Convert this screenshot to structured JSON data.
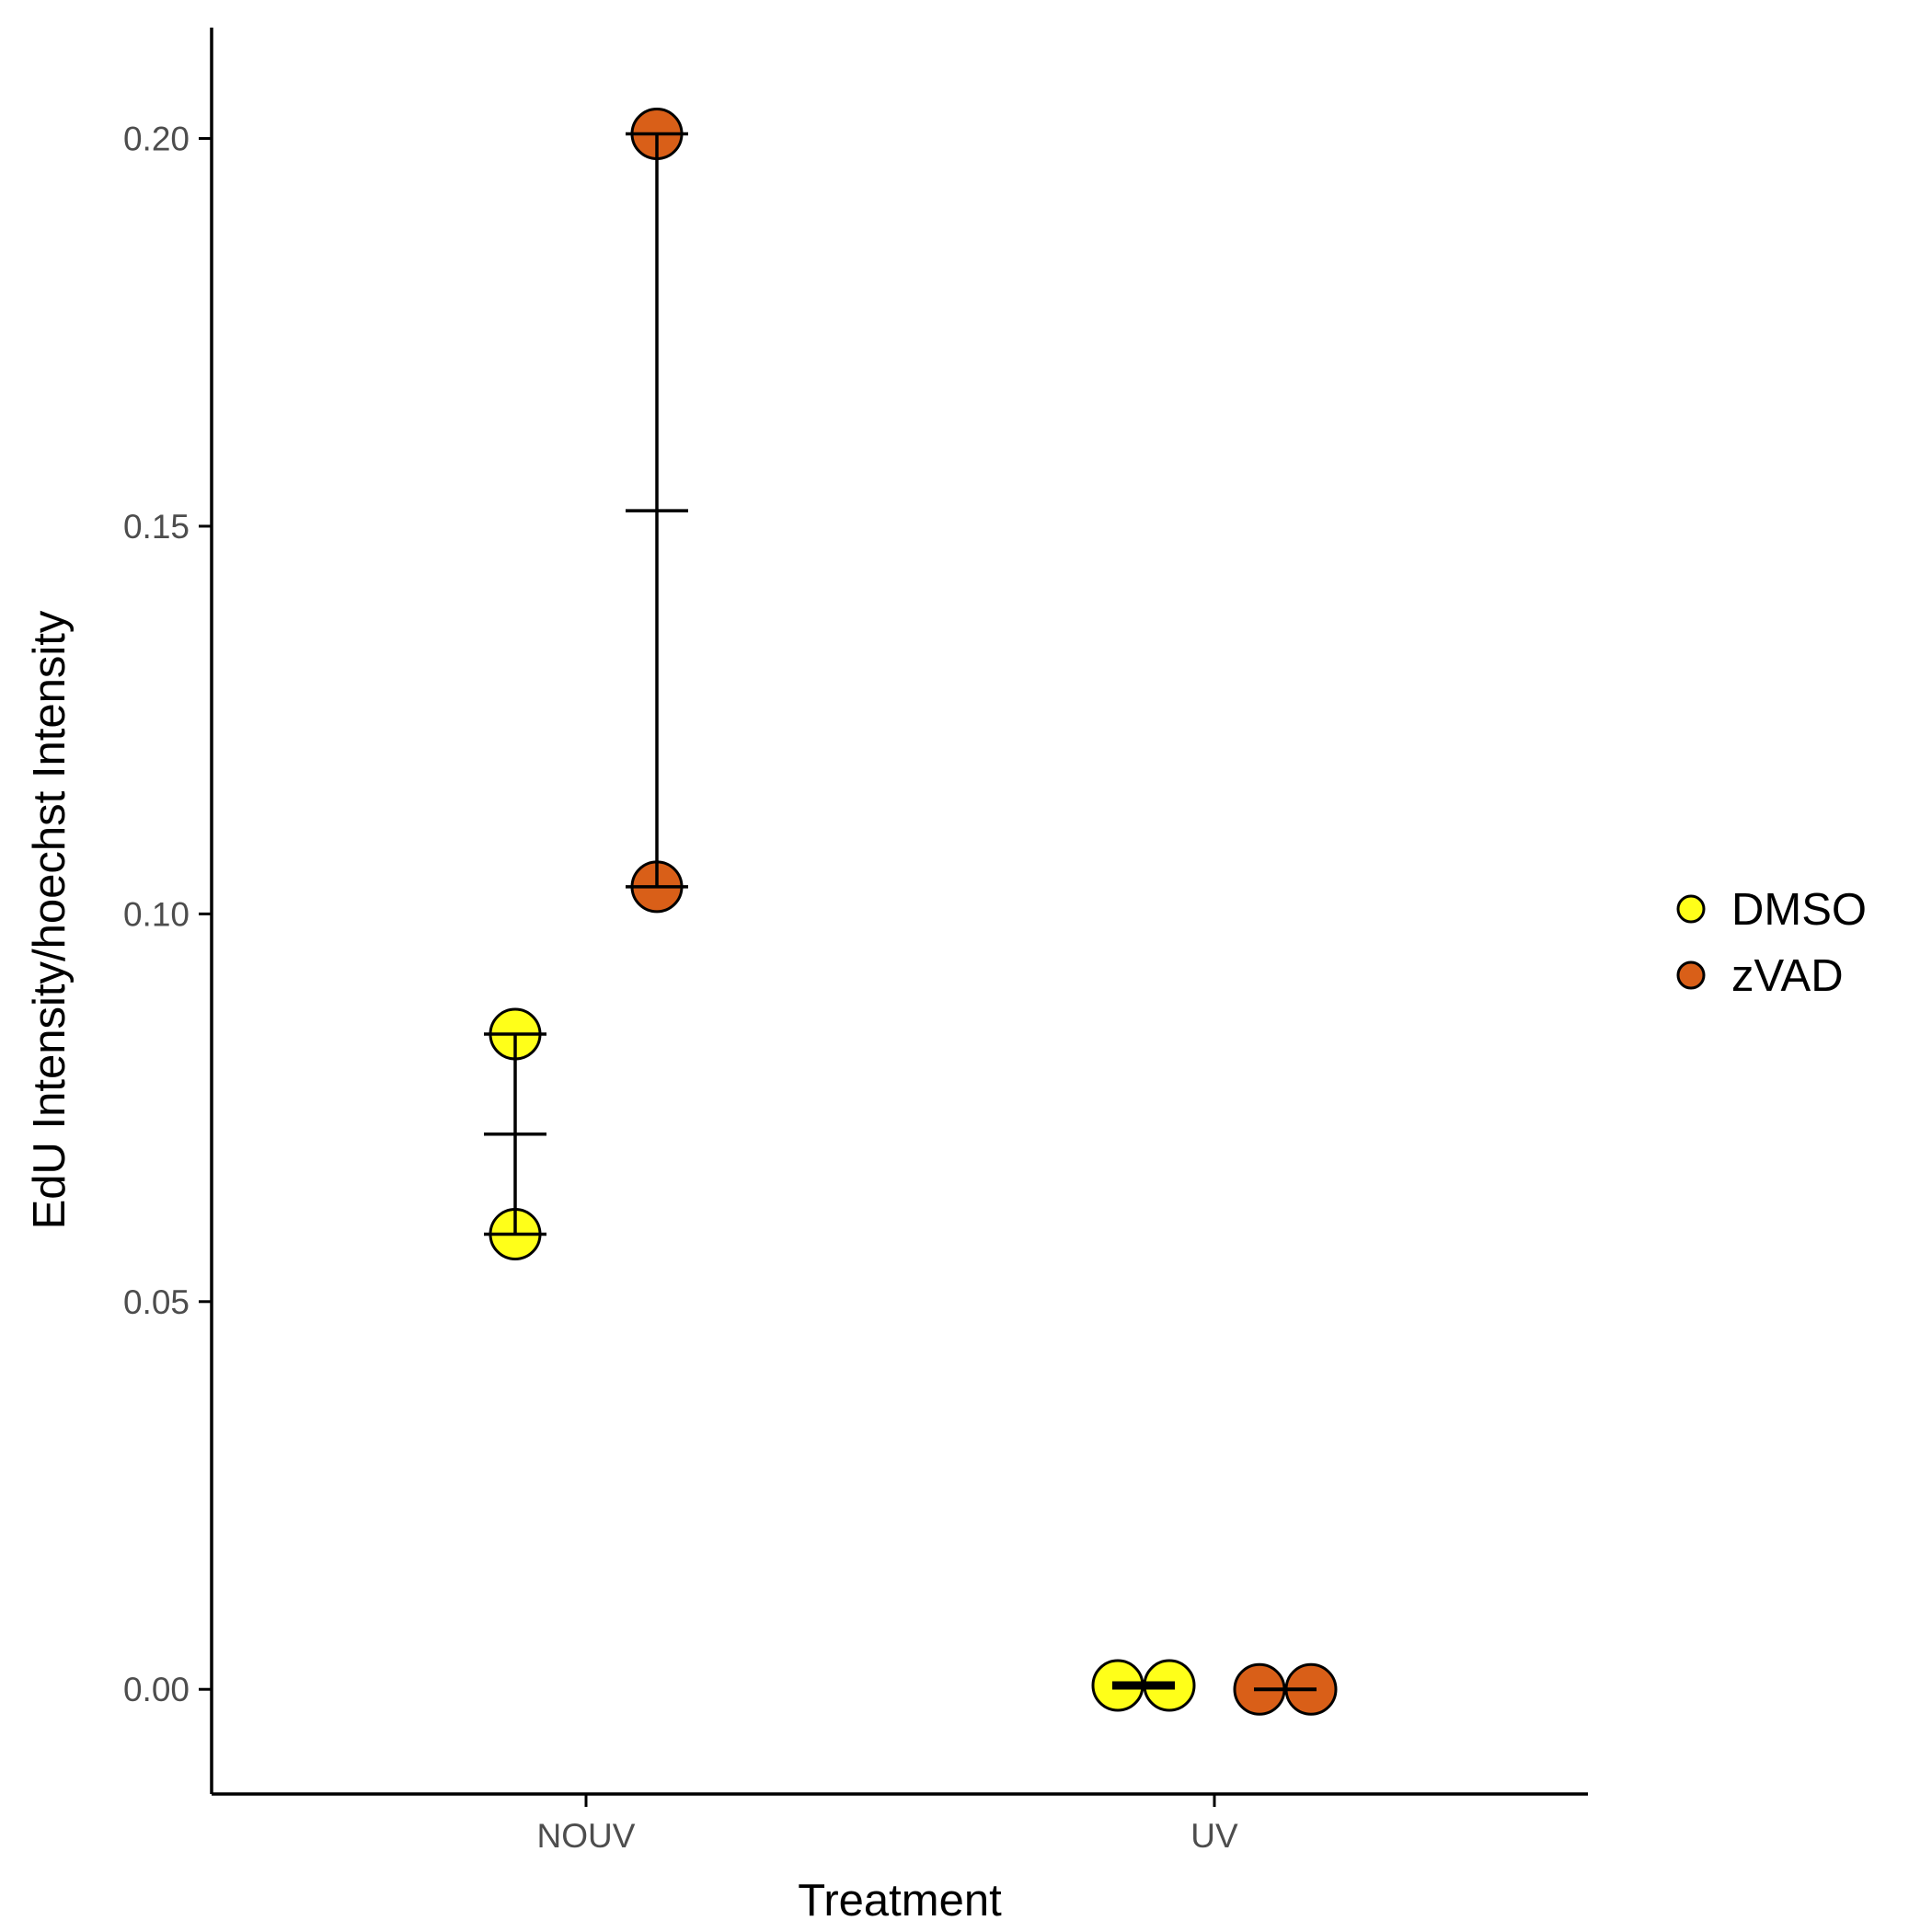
{
  "chart_data": {
    "type": "scatter",
    "xlabel": "Treatment",
    "ylabel": "EdU Intensity/hoechst Intensity",
    "categories": [
      "NOUV",
      "UV"
    ],
    "ylim": [
      -0.0135,
      0.2143
    ],
    "y_ticks": [
      0.0,
      0.05,
      0.1,
      0.15,
      0.2
    ],
    "y_tick_labels": [
      "0.00",
      "0.05",
      "0.10",
      "0.15",
      "0.20"
    ],
    "grid": false,
    "legend": {
      "position": "right"
    },
    "series": [
      {
        "name": "DMSO",
        "color": "#FFFF19",
        "groups": [
          {
            "category": "NOUV",
            "points": [
              0.0845,
              0.0587
            ],
            "mean": 0.0716,
            "min": 0.0587,
            "max": 0.0845
          },
          {
            "category": "UV",
            "points": [
              0.0005,
              0.0005
            ],
            "mean": 0.0005,
            "min": 0.0005,
            "max": 0.0005
          }
        ]
      },
      {
        "name": "zVAD",
        "color": "#D95F18",
        "groups": [
          {
            "category": "NOUV",
            "points": [
              0.2006,
              0.1035
            ],
            "mean": 0.152,
            "min": 0.1035,
            "max": 0.2006
          },
          {
            "category": "UV",
            "points": [
              0.0,
              0.0
            ],
            "mean": 0.0,
            "min": 0.0,
            "max": 0.0
          }
        ]
      }
    ]
  }
}
